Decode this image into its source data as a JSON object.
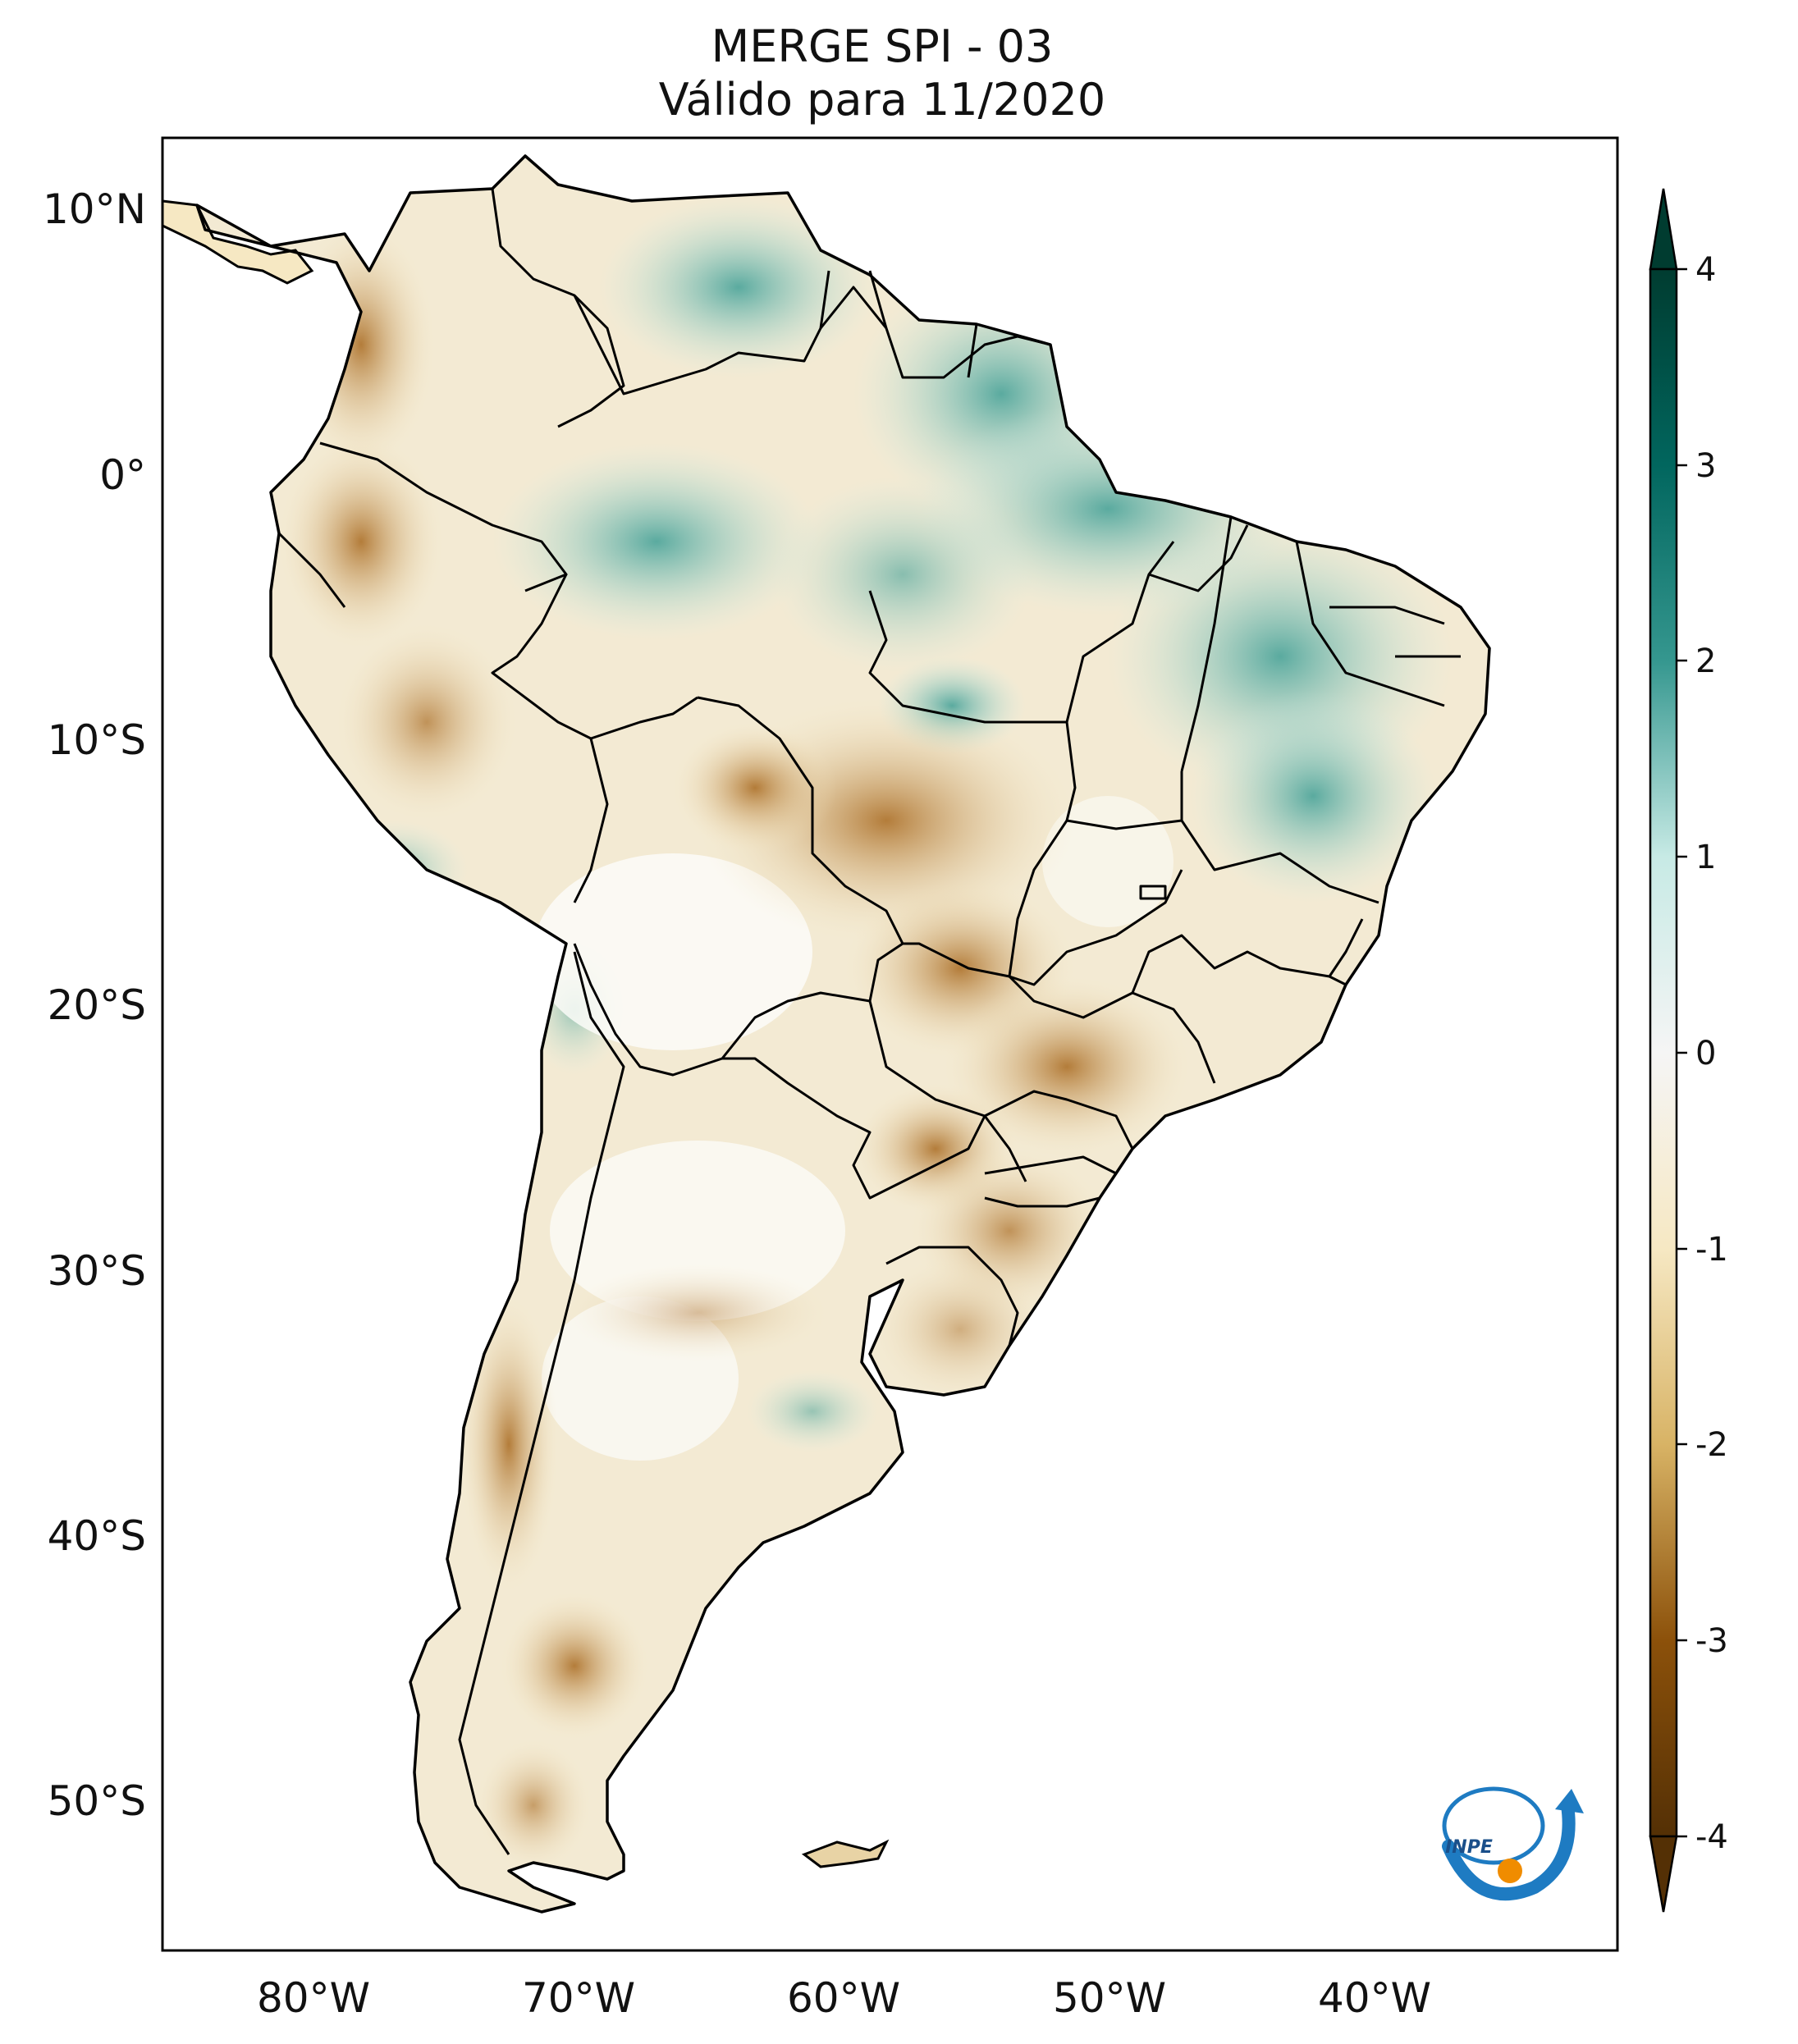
{
  "title": {
    "line1": "MERGE   SPI - 03",
    "line2": "Válido para 11/2020"
  },
  "map": {
    "lat_ticks": [
      "10°N",
      "0°",
      "10°S",
      "20°S",
      "30°S",
      "40°S",
      "50°S"
    ],
    "lon_ticks": [
      "80°W",
      "70°W",
      "60°W",
      "50°W",
      "40°W"
    ]
  },
  "colorbar": {
    "ticks": [
      "4",
      "3",
      "2",
      "1",
      "0",
      "-1",
      "-2",
      "-3",
      "-4"
    ],
    "colors": {
      "wet_extreme": "#003c30",
      "wet_strong": "#01665e",
      "wet_moderate": "#5ab4ac",
      "wet_light": "#c7eae5",
      "neutral": "#f5f5f5",
      "dry_light": "#f6e8c3",
      "dry_moderate": "#d8b365",
      "dry_strong": "#8c510a",
      "dry_extreme": "#543005"
    }
  },
  "logo": {
    "text": "INPE",
    "icon": "inpe-logo-icon"
  }
}
